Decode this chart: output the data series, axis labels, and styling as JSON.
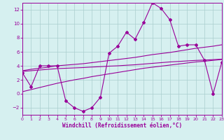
{
  "x": [
    0,
    1,
    2,
    3,
    4,
    5,
    6,
    7,
    8,
    9,
    10,
    11,
    12,
    13,
    14,
    15,
    16,
    17,
    18,
    19,
    20,
    21,
    22,
    23
  ],
  "temp": [
    3,
    1,
    4,
    4,
    4,
    -1,
    -2,
    -2.5,
    -2,
    -0.5,
    5.8,
    6.8,
    8.8,
    7.8,
    10.2,
    13,
    12.2,
    10.6,
    6.8,
    7,
    7,
    4.8,
    0,
    4.5
  ],
  "reg1": [
    3.3,
    3.5,
    3.65,
    3.8,
    4.0,
    4.1,
    4.2,
    4.3,
    4.45,
    4.6,
    4.75,
    4.9,
    5.05,
    5.2,
    5.4,
    5.6,
    5.75,
    5.9,
    6.1,
    6.3,
    6.5,
    6.65,
    6.8,
    7.0
  ],
  "reg2": [
    3.2,
    3.3,
    3.4,
    3.5,
    3.6,
    3.65,
    3.7,
    3.75,
    3.82,
    3.88,
    3.95,
    4.0,
    4.08,
    4.15,
    4.25,
    4.35,
    4.45,
    4.55,
    4.62,
    4.7,
    4.77,
    4.82,
    4.88,
    4.95
  ],
  "reg3": [
    0.3,
    0.6,
    0.9,
    1.2,
    1.5,
    1.75,
    2.0,
    2.2,
    2.45,
    2.65,
    2.85,
    3.05,
    3.25,
    3.45,
    3.65,
    3.8,
    3.95,
    4.1,
    4.25,
    4.4,
    4.55,
    4.65,
    4.78,
    4.9
  ],
  "color": "#990099",
  "bg_color": "#d6f0f0",
  "grid_color": "#aacece",
  "xlabel": "Windchill (Refroidissement éolien,°C)",
  "ylim": [
    -3,
    13
  ],
  "xlim": [
    0,
    23
  ],
  "yticks": [
    -2,
    0,
    2,
    4,
    6,
    8,
    10,
    12
  ],
  "xticks": [
    0,
    1,
    2,
    3,
    4,
    5,
    6,
    7,
    8,
    9,
    10,
    11,
    12,
    13,
    14,
    15,
    16,
    17,
    18,
    19,
    20,
    21,
    22,
    23
  ]
}
